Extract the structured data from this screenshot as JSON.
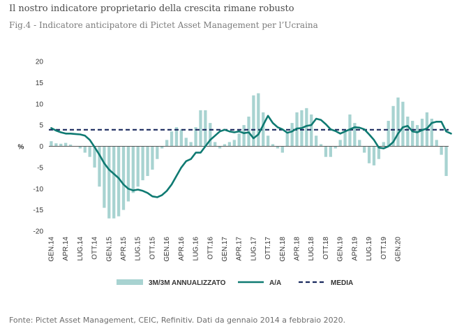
{
  "header": {
    "title": "Il nostro indicatore proprietario della crescita rimane robusto",
    "subtitle": "Fig.4 - Indicatore anticipatore di Pictet Asset Management per l’Ucraina"
  },
  "footer": {
    "source": "Fonte: Pictet Asset Management, CEIC, Refinitiv. Dati da gennaio 2014 a febbraio 2020."
  },
  "colors": {
    "bars": "#a8d3d1",
    "line": "#0f7a72",
    "media": "#1a2a5e",
    "zero_line": "#555555"
  },
  "chart_data": {
    "type": "bar",
    "ylabel": "%",
    "ylim": [
      -20,
      20
    ],
    "yticks": [
      20,
      15,
      10,
      5,
      0,
      -5,
      -10,
      -15,
      -20
    ],
    "x_tick_labels": [
      "GEN.14",
      "APR.14",
      "LUG.14",
      "OTT.14",
      "GEN.15",
      "APR.15",
      "LUG.15",
      "OTT.15",
      "GEN.16",
      "APR.16",
      "LUG.16",
      "OTT.16",
      "GEN.17",
      "APR.17",
      "LUG.17",
      "OTT.17",
      "GEN.18",
      "APR.18",
      "LUG.18",
      "OTT.18",
      "GEN.19",
      "APR.19",
      "LUG.19",
      "OTT.19",
      "GEN.20"
    ],
    "legend": {
      "position": "bottom",
      "bars_label": "3M/3M ANNUALIZZATO",
      "line_label": "A/A",
      "media_label": "MEDIA"
    },
    "series": [
      {
        "name": "3M/3M ANNUALIZZATO",
        "type": "bar",
        "values": [
          1.2,
          0.7,
          0.6,
          0.8,
          0.4,
          0.0,
          -0.5,
          -1.5,
          -2.5,
          -5.0,
          -9.5,
          -14.5,
          -17.0,
          -17.0,
          -16.5,
          -15.0,
          -13.0,
          -11.0,
          -9.5,
          -8.0,
          -7.0,
          -5.5,
          -3.0,
          -0.5,
          1.5,
          3.5,
          4.5,
          4.0,
          2.0,
          1.0,
          4.5,
          8.5,
          8.5,
          5.5,
          1.0,
          -0.5,
          0.5,
          1.0,
          1.5,
          3.0,
          5.0,
          7.0,
          12.0,
          12.5,
          8.0,
          2.5,
          0.5,
          -0.5,
          -1.5,
          3.5,
          5.5,
          8.0,
          8.5,
          9.0,
          7.5,
          2.5,
          0.5,
          -2.5,
          -2.5,
          -0.5,
          1.5,
          3.5,
          7.5,
          5.5,
          1.5,
          -1.5,
          -4.0,
          -4.5,
          -3.0,
          1.0,
          6.0,
          9.5,
          11.5,
          10.5,
          7.0,
          6.0,
          5.0,
          6.5,
          8.0,
          6.5,
          1.5,
          -2.0,
          -7.0
        ],
        "color": "#a8d3d1"
      },
      {
        "name": "A/A",
        "type": "line",
        "values": [
          4.3,
          3.7,
          3.3,
          3.0,
          3.0,
          2.9,
          2.8,
          2.5,
          1.5,
          -0.2,
          -2.0,
          -4.0,
          -5.5,
          -6.5,
          -7.5,
          -9.0,
          -10.0,
          -10.4,
          -10.2,
          -10.5,
          -11.0,
          -11.8,
          -12.0,
          -11.5,
          -10.5,
          -9.0,
          -7.0,
          -5.0,
          -3.5,
          -3.0,
          -1.5,
          -1.5,
          0.0,
          1.5,
          2.5,
          3.5,
          3.9,
          3.5,
          3.3,
          3.5,
          3.1,
          3.3,
          1.9,
          2.8,
          5.0,
          7.2,
          5.5,
          4.5,
          4.0,
          3.2,
          3.5,
          4.2,
          4.3,
          4.8,
          5.0,
          6.5,
          6.2,
          5.2,
          4.0,
          3.6,
          3.0,
          3.5,
          4.0,
          4.5,
          4.4,
          4.0,
          2.8,
          1.5,
          -0.3,
          -0.5,
          0.0,
          1.0,
          3.0,
          4.5,
          4.8,
          3.5,
          3.3,
          3.8,
          4.2,
          5.5,
          5.8,
          5.8,
          3.5,
          3.0
        ],
        "color": "#0f7a72"
      },
      {
        "name": "MEDIA",
        "type": "line",
        "values": [
          3.9
        ],
        "color": "#1a2a5e"
      }
    ]
  }
}
